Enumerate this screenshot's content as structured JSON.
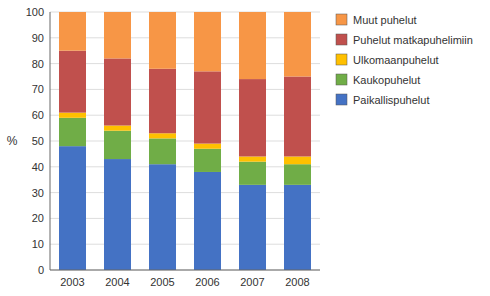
{
  "chart_data": {
    "type": "bar",
    "stacked": true,
    "ylabel": "%",
    "categories": [
      "2003",
      "2004",
      "2005",
      "2006",
      "2007",
      "2008"
    ],
    "series": [
      {
        "name": "Paikallispuhelut",
        "color": "#4472c4",
        "values": [
          48,
          43,
          41,
          38,
          33,
          33
        ]
      },
      {
        "name": "Kaukopuhelut",
        "color": "#70ad47",
        "values": [
          11,
          11,
          10,
          9,
          9,
          8
        ]
      },
      {
        "name": "Ulkomaanpuhelut",
        "color": "#ffc000",
        "values": [
          2,
          2,
          2,
          2,
          2,
          3
        ]
      },
      {
        "name": "Puhelut matkapuhelimiin",
        "color": "#c0504d",
        "values": [
          24,
          26,
          25,
          28,
          30,
          31
        ]
      },
      {
        "name": "Muut puhelut",
        "color": "#f79646",
        "values": [
          15,
          18,
          22,
          23,
          26,
          25
        ]
      }
    ],
    "ylim": [
      0,
      100
    ],
    "yticks": [
      0,
      10,
      20,
      30,
      40,
      50,
      60,
      70,
      80,
      90,
      100
    ],
    "grid": true,
    "legend": "right"
  }
}
